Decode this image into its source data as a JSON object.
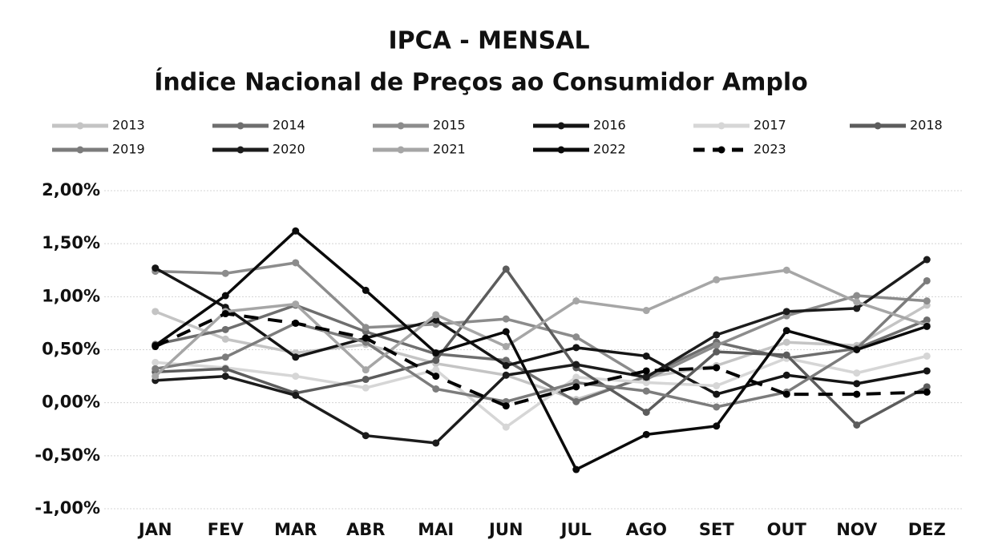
{
  "chart_data": {
    "type": "line",
    "title": "IPCA - MENSAL",
    "subtitle": "Índice Nacional de Preços ao Consumidor Amplo",
    "categories": [
      "JAN",
      "FEV",
      "MAR",
      "ABR",
      "MAI",
      "JUN",
      "JUL",
      "AGO",
      "SET",
      "OUT",
      "NOV",
      "DEZ"
    ],
    "ylim": [
      -1,
      2
    ],
    "yticks": [
      {
        "value": 2,
        "label": "2,00%"
      },
      {
        "value": 1.5,
        "label": "1,50%"
      },
      {
        "value": 1,
        "label": "1,00%"
      },
      {
        "value": 0.5,
        "label": "0,50%"
      },
      {
        "value": 0,
        "label": "0,00%"
      },
      {
        "value": -0.5,
        "label": "-0,50%"
      },
      {
        "value": -1,
        "label": "-1,00%"
      }
    ],
    "grid": true,
    "legend": "top",
    "series": [
      {
        "name": "2013",
        "color": "#c4c4c4",
        "values": [
          0.86,
          0.6,
          0.47,
          0.55,
          0.37,
          0.26,
          0.03,
          0.24,
          0.35,
          0.57,
          0.54,
          0.92
        ]
      },
      {
        "name": "2014",
        "color": "#6e6e6e",
        "values": [
          0.55,
          0.69,
          0.92,
          0.67,
          0.46,
          0.4,
          0.01,
          0.25,
          0.57,
          0.42,
          0.51,
          0.78
        ]
      },
      {
        "name": "2015",
        "color": "#8c8c8c",
        "values": [
          1.24,
          1.22,
          1.32,
          0.71,
          0.74,
          0.79,
          0.62,
          0.22,
          0.54,
          0.82,
          1.01,
          0.96
        ]
      },
      {
        "name": "2016",
        "color": "#151515",
        "values": [
          1.27,
          0.9,
          0.43,
          0.61,
          0.78,
          0.35,
          0.52,
          0.44,
          0.08,
          0.26,
          0.18,
          0.3
        ]
      },
      {
        "name": "2017",
        "color": "#d6d6d6",
        "values": [
          0.38,
          0.33,
          0.25,
          0.14,
          0.31,
          -0.23,
          0.24,
          0.19,
          0.16,
          0.42,
          0.28,
          0.44
        ]
      },
      {
        "name": "2018",
        "color": "#5c5c5c",
        "values": [
          0.29,
          0.32,
          0.09,
          0.22,
          0.4,
          1.26,
          0.33,
          -0.09,
          0.48,
          0.45,
          -0.21,
          0.15
        ]
      },
      {
        "name": "2019",
        "color": "#7c7c7c",
        "values": [
          0.32,
          0.43,
          0.75,
          0.57,
          0.13,
          0.01,
          0.19,
          0.11,
          -0.04,
          0.1,
          0.51,
          1.15
        ]
      },
      {
        "name": "2020",
        "color": "#1c1c1c",
        "values": [
          0.21,
          0.25,
          0.07,
          -0.31,
          -0.38,
          0.26,
          0.36,
          0.24,
          0.64,
          0.86,
          0.89,
          1.35
        ]
      },
      {
        "name": "2021",
        "color": "#a6a6a6",
        "values": [
          0.25,
          0.86,
          0.93,
          0.31,
          0.83,
          0.53,
          0.96,
          0.87,
          1.16,
          1.25,
          0.95,
          0.73
        ]
      },
      {
        "name": "2022",
        "color": "#0a0a0a",
        "values": [
          0.54,
          1.01,
          1.62,
          1.06,
          0.47,
          0.67,
          -0.63,
          -0.3,
          -0.22,
          0.68,
          0.5,
          0.72
        ]
      },
      {
        "name": "2023",
        "color": "#000000",
        "dashed": true,
        "values": [
          0.53,
          0.84,
          0.75,
          0.61,
          0.25,
          -0.03,
          0.15,
          0.3,
          0.33,
          0.08,
          0.08,
          0.1
        ]
      }
    ]
  }
}
